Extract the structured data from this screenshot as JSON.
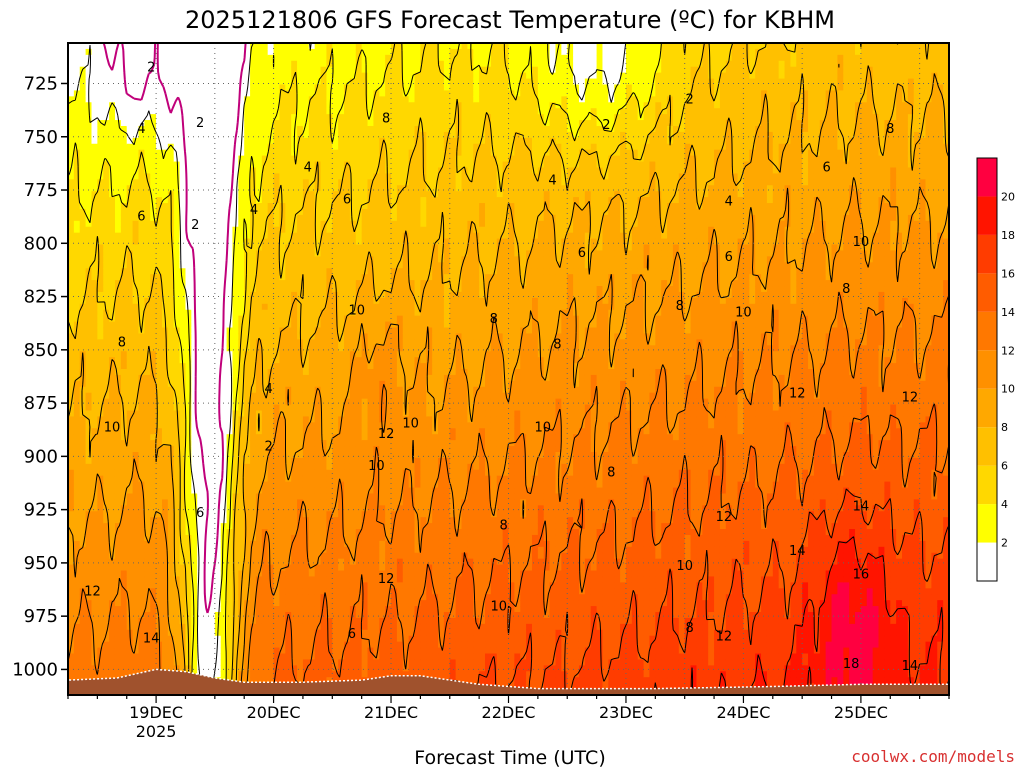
{
  "chart_data": {
    "type": "heatmap",
    "title": "2025121806 GFS Forecast Temperature (ºC) for KBHM",
    "xlabel": "Forecast Time (UTC)",
    "ylabel": "",
    "credit": "coolwx.com/models",
    "x_range": [
      "2025-12-18T06",
      "2025-12-25T18"
    ],
    "x_ticks": [
      {
        "label": "19DEC",
        "sub": "2025",
        "time": "2025-12-19T00"
      },
      {
        "label": "20DEC",
        "sub": "",
        "time": "2025-12-20T00"
      },
      {
        "label": "21DEC",
        "sub": "",
        "time": "2025-12-21T00"
      },
      {
        "label": "22DEC",
        "sub": "",
        "time": "2025-12-22T00"
      },
      {
        "label": "23DEC",
        "sub": "",
        "time": "2025-12-23T00"
      },
      {
        "label": "24DEC",
        "sub": "",
        "time": "2025-12-24T00"
      },
      {
        "label": "25DEC",
        "sub": "",
        "time": "2025-12-25T00"
      }
    ],
    "y_range_hpa": [
      1012,
      706
    ],
    "y_ticks": [
      "725",
      "750",
      "775",
      "800",
      "825",
      "850",
      "875",
      "900",
      "925",
      "950",
      "975",
      "1000"
    ],
    "grid": "dotted",
    "colorbar": {
      "placement": "right",
      "levels": [
        "2",
        "4",
        "6",
        "8",
        "10",
        "12",
        "14",
        "16",
        "18",
        "20"
      ],
      "bounds": [
        0,
        2,
        4,
        6,
        8,
        10,
        12,
        14,
        16,
        18,
        20,
        22
      ],
      "colors": [
        "#ffffff",
        "#ffff00",
        "#ffd800",
        "#ffc000",
        "#ffa800",
        "#ff9000",
        "#ff7800",
        "#ff5c00",
        "#ff3c00",
        "#ff1400",
        "#ff0040"
      ]
    },
    "contour_labels": [
      {
        "text": "2",
        "t": "2025-12-18T23",
        "p": 717
      },
      {
        "text": "2",
        "t": "2025-12-19T09",
        "p": 743
      },
      {
        "text": "2",
        "t": "2025-12-19T08",
        "p": 791
      },
      {
        "text": "2",
        "t": "2025-12-19T23",
        "p": 895
      },
      {
        "text": "2",
        "t": "2025-12-22T20",
        "p": 744
      },
      {
        "text": "2",
        "t": "2025-12-23T13",
        "p": 732
      },
      {
        "text": "4",
        "t": "2025-12-18T21",
        "p": 746
      },
      {
        "text": "4",
        "t": "2025-12-19T20",
        "p": 784
      },
      {
        "text": "4",
        "t": "2025-12-20T07",
        "p": 764
      },
      {
        "text": "4",
        "t": "2025-12-19T23",
        "p": 868
      },
      {
        "text": "4",
        "t": "2025-12-22T09",
        "p": 770
      },
      {
        "text": "4",
        "t": "2025-12-23T21",
        "p": 780
      },
      {
        "text": "6",
        "t": "2025-12-18T21",
        "p": 787
      },
      {
        "text": "6",
        "t": "2025-12-20T15",
        "p": 779
      },
      {
        "text": "6",
        "t": "2025-12-19T09",
        "p": 926
      },
      {
        "text": "6",
        "t": "2025-12-20T16",
        "p": 983
      },
      {
        "text": "6",
        "t": "2025-12-22T15",
        "p": 804
      },
      {
        "text": "6",
        "t": "2025-12-23T21",
        "p": 806
      },
      {
        "text": "6",
        "t": "2025-12-24T17",
        "p": 764
      },
      {
        "text": "8",
        "t": "2025-12-18T17",
        "p": 846
      },
      {
        "text": "8",
        "t": "2025-12-20T23",
        "p": 741
      },
      {
        "text": "8",
        "t": "2025-12-21T21",
        "p": 835
      },
      {
        "text": "8",
        "t": "2025-12-22T10",
        "p": 847
      },
      {
        "text": "8",
        "t": "2025-12-23T11",
        "p": 829
      },
      {
        "text": "8",
        "t": "2025-12-22T21",
        "p": 907
      },
      {
        "text": "8",
        "t": "2025-12-21T23",
        "p": 932
      },
      {
        "text": "8",
        "t": "2025-12-23T13",
        "p": 980
      },
      {
        "text": "8",
        "t": "2025-12-24T21",
        "p": 821
      },
      {
        "text": "8",
        "t": "2025-12-25T06",
        "p": 746
      },
      {
        "text": "10",
        "t": "2025-12-18T15",
        "p": 886
      },
      {
        "text": "10",
        "t": "2025-12-20T17",
        "p": 831
      },
      {
        "text": "10",
        "t": "2025-12-21T04",
        "p": 884
      },
      {
        "text": "10",
        "t": "2025-12-20T21",
        "p": 904
      },
      {
        "text": "10",
        "t": "2025-12-22T07",
        "p": 886
      },
      {
        "text": "10",
        "t": "2025-12-21T22",
        "p": 970
      },
      {
        "text": "10",
        "t": "2025-12-23T12",
        "p": 951
      },
      {
        "text": "10",
        "t": "2025-12-24T00",
        "p": 832
      },
      {
        "text": "10",
        "t": "2025-12-25T00",
        "p": 799
      },
      {
        "text": "12",
        "t": "2025-12-18T11",
        "p": 963
      },
      {
        "text": "12",
        "t": "2025-12-20T23",
        "p": 957
      },
      {
        "text": "12",
        "t": "2025-12-20T23",
        "p": 889
      },
      {
        "text": "12",
        "t": "2025-12-23T20",
        "p": 928
      },
      {
        "text": "12",
        "t": "2025-12-23T20",
        "p": 984
      },
      {
        "text": "12",
        "t": "2025-12-24T11",
        "p": 870
      },
      {
        "text": "12",
        "t": "2025-12-25T10",
        "p": 872
      },
      {
        "text": "14",
        "t": "2025-12-18T23",
        "p": 985
      },
      {
        "text": "14",
        "t": "2025-12-24T11",
        "p": 944
      },
      {
        "text": "14",
        "t": "2025-12-25T00",
        "p": 923
      },
      {
        "text": "14",
        "t": "2025-12-25T10",
        "p": 998
      },
      {
        "text": "16",
        "t": "2025-12-25T00",
        "p": 955
      },
      {
        "text": "18",
        "t": "2025-12-24T22",
        "p": 997
      }
    ]
  }
}
